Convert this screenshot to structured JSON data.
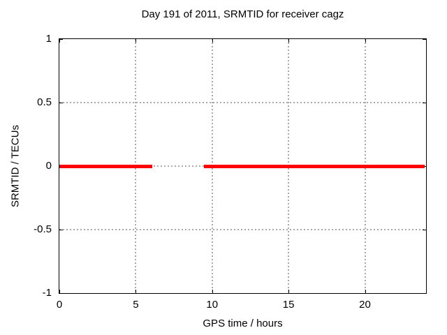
{
  "chart_data": {
    "type": "line",
    "title": "Day 191 of 2011, SRMTID for receiver cagz",
    "xlabel": "GPS time / hours",
    "ylabel": "SRMTID / TECUs",
    "xlim": [
      0,
      24
    ],
    "ylim": [
      -1,
      1
    ],
    "xticks": [
      0,
      5,
      10,
      15,
      20
    ],
    "xtick_labels": [
      "0",
      "5",
      "10",
      "15",
      "20"
    ],
    "yticks": [
      1,
      0.5,
      0,
      -0.5,
      -1
    ],
    "ytick_labels": [
      "1",
      "0.5",
      "0",
      "-0.5",
      "-1"
    ],
    "grid": "dotted, at interior ticks only",
    "legend": "none",
    "tick_style": "inside, mirrored on all four borders",
    "colors": {
      "line": "#ff0000",
      "grid": "#a9a9a9",
      "axis": "#000000",
      "text": "#000000",
      "background": "#ffffff"
    },
    "series": [
      {
        "name": "SRMTID",
        "color": "#ff0000",
        "style": "thick constant line at y=0 with a data gap",
        "segments": [
          {
            "x_start": 0.0,
            "x_end": 6.1,
            "y": 0
          },
          {
            "x_start": 9.45,
            "x_end": 23.9,
            "y": 0
          }
        ]
      }
    ]
  }
}
